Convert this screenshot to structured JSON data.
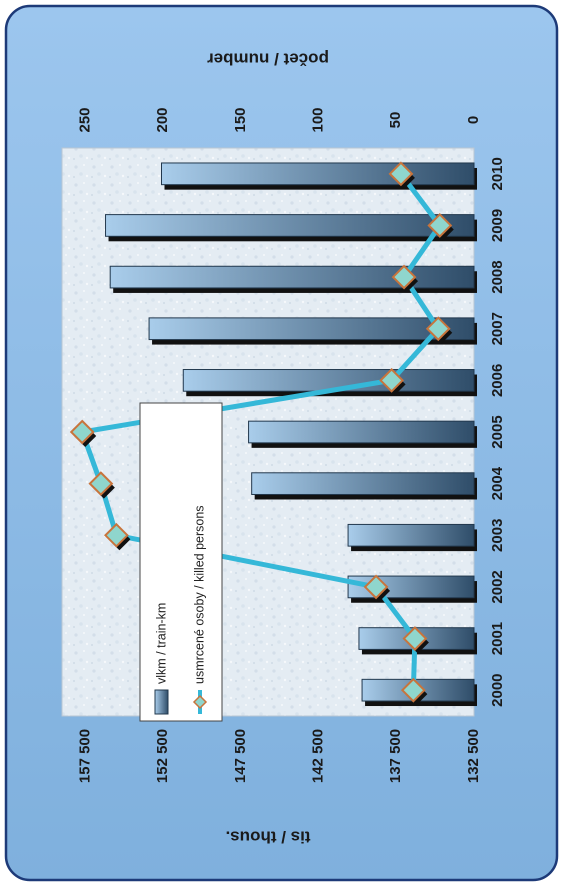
{
  "chart_data": {
    "type": "bar",
    "orientation": "rotated-90-clockwise",
    "categories": [
      "2000",
      "2001",
      "2002",
      "2003",
      "2004",
      "2005",
      "2006",
      "2007",
      "2008",
      "2009",
      "2010"
    ],
    "series": [
      {
        "name": "vlkm / train-km",
        "type": "bar",
        "axis": "left",
        "values": [
          139700,
          139900,
          140600,
          140600,
          146800,
          147000,
          151200,
          153400,
          155900,
          156200,
          152600
        ]
      },
      {
        "name": "usmrcené osoby / killed persons",
        "type": "line",
        "axis": "right",
        "values": [
          39,
          38,
          63,
          230,
          240,
          252,
          53,
          23,
          45,
          22,
          47
        ]
      }
    ],
    "left_axis": {
      "label": "tis / thous.",
      "ticks": [
        "132 500",
        "137 500",
        "142 500",
        "147 500",
        "152 500",
        "157 500"
      ],
      "range": [
        132500,
        159000
      ]
    },
    "right_axis": {
      "label": "počet / number",
      "ticks": [
        "0",
        "50",
        "100",
        "150",
        "200",
        "250"
      ],
      "range": [
        0,
        265
      ]
    },
    "legend_position": "top-right",
    "grid": false,
    "colors": {
      "frame_fill": "#8fbde8",
      "frame_border": "#1d3a78",
      "plot_background": "#e3ebf2",
      "bar_light": "#a9cdeb",
      "bar_dark": "#2f4d69",
      "bar_shadow": "#111111",
      "line": "#35b8d8",
      "marker_fill": "#8fd6cd",
      "marker_border": "#c8743c"
    }
  }
}
